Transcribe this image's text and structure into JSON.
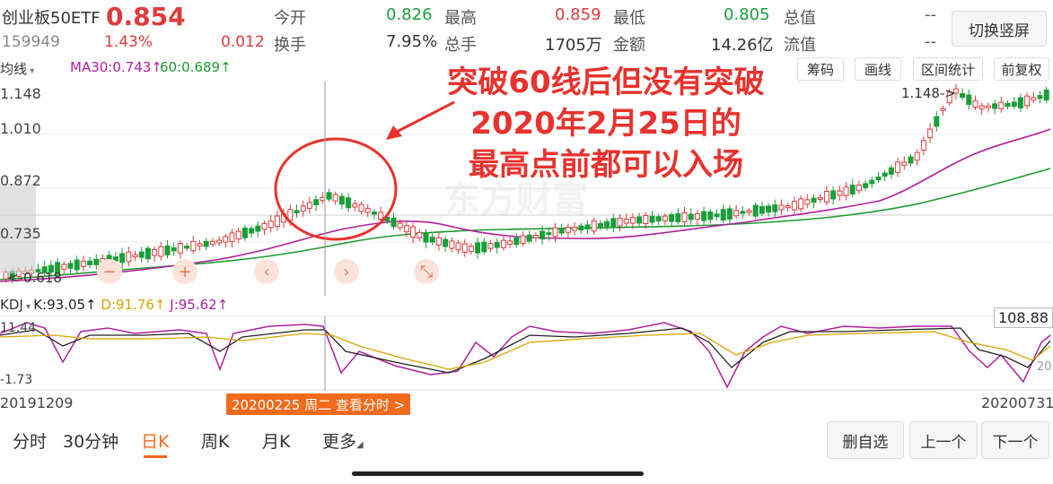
{
  "header": {
    "name": "创业板50ETF",
    "price": "0.854",
    "code": "159949",
    "change_pct": "1.43%",
    "change": "0.012",
    "stats": [
      {
        "label": "今开",
        "value": "0.826"
      },
      {
        "label": "最高",
        "value": "0.859"
      },
      {
        "label": "最低",
        "value": "0.805"
      },
      {
        "label": "总值",
        "value": "--"
      },
      {
        "label": "换手",
        "value": "7.95%"
      },
      {
        "label": "总手",
        "value": "1705万"
      },
      {
        "label": "金额",
        "value": "14.26亿"
      },
      {
        "label": "流值",
        "value": "--"
      }
    ],
    "switch_label": "切换竖屏"
  },
  "toolbar": {
    "indicator": "均线",
    "ma30": "MA30:0.743",
    "ma60": "60:0.689",
    "buttons": [
      "筹码",
      "画线",
      "区间统计",
      "前复权"
    ]
  },
  "price_axis": [
    "1.148",
    "1.010",
    "0.872",
    "0.735"
  ],
  "price_marks": {
    "high": "1.148",
    "low": "0.618"
  },
  "annotation": {
    "line1": "突破60线后但没有突破",
    "line2": "2020年2月25日的",
    "line3": "最高点前都可以入场"
  },
  "watermark": "东方财富",
  "kdj": {
    "label": "KDJ",
    "k": "K:93.05",
    "d": "D:91.76",
    "j": "J:95.62",
    "axis_top": "11.44",
    "axis_bottom": "-1.73",
    "right_value": "108.88",
    "right_small": "20"
  },
  "dates": {
    "start": "20191209",
    "end": "20200731"
  },
  "crosshair_label": "20200225 周二 查看分时 >",
  "tabs": [
    "分时",
    "30分钟",
    "日K",
    "周K",
    "月K",
    "更多"
  ],
  "active_tab": "日K",
  "bottom_buttons": [
    "删自选",
    "上一个",
    "下一个"
  ],
  "colors": {
    "up": "#e03b3b",
    "down": "#1a9e3a",
    "ma30": "#b0209c",
    "ma60": "#1f9a2f",
    "accent": "#f26a1b"
  }
}
